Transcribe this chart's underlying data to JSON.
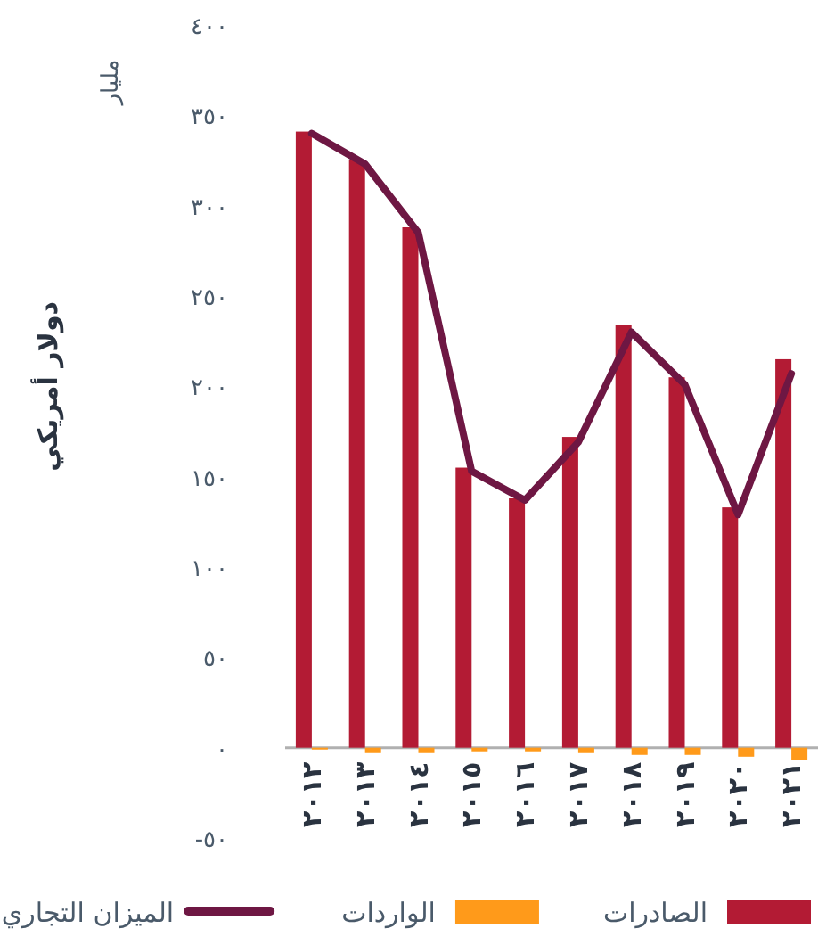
{
  "chart_data": {
    "type": "bar",
    "ylabel": "دولار أمريكي",
    "annotations": [
      "مليار"
    ],
    "categories": [
      "٢٠١٢",
      "٢٠١٣",
      "٢٠١٤",
      "٢٠١٥",
      "٢٠١٦",
      "٢٠١٧",
      "٢٠١٨",
      "٢٠١٩",
      "٢٠٢٠",
      "٢٠٢١"
    ],
    "series": [
      {
        "name": "الصادرات",
        "color": "#b31b34",
        "values": [
          341,
          325,
          288,
          155,
          138,
          172,
          234,
          205,
          133,
          215
        ]
      },
      {
        "name": "الواردات",
        "color": "#ff9a1a",
        "values": [
          -1,
          -3,
          -3,
          -2,
          -2,
          -3,
          -4,
          -4,
          -5,
          -7
        ]
      },
      {
        "name": "الميزان التجاري",
        "type": "line",
        "color": "#6e1743",
        "values": [
          340,
          323,
          285,
          153,
          137,
          169,
          230,
          201,
          129,
          207
        ]
      }
    ],
    "ylim": [
      -50,
      400
    ],
    "yticks": [
      {
        "value": -50,
        "label": "-٥٠"
      },
      {
        "value": 0,
        "label": "٠"
      },
      {
        "value": 50,
        "label": "٥٠"
      },
      {
        "value": 100,
        "label": "١٠٠"
      },
      {
        "value": 150,
        "label": "١٥٠"
      },
      {
        "value": 200,
        "label": "٢٠٠"
      },
      {
        "value": 250,
        "label": "٢٥٠"
      },
      {
        "value": 300,
        "label": "٣٠٠"
      },
      {
        "value": 350,
        "label": "٣٥٠"
      },
      {
        "value": 400,
        "label": "٤٠٠"
      }
    ],
    "legend": "bottom"
  }
}
